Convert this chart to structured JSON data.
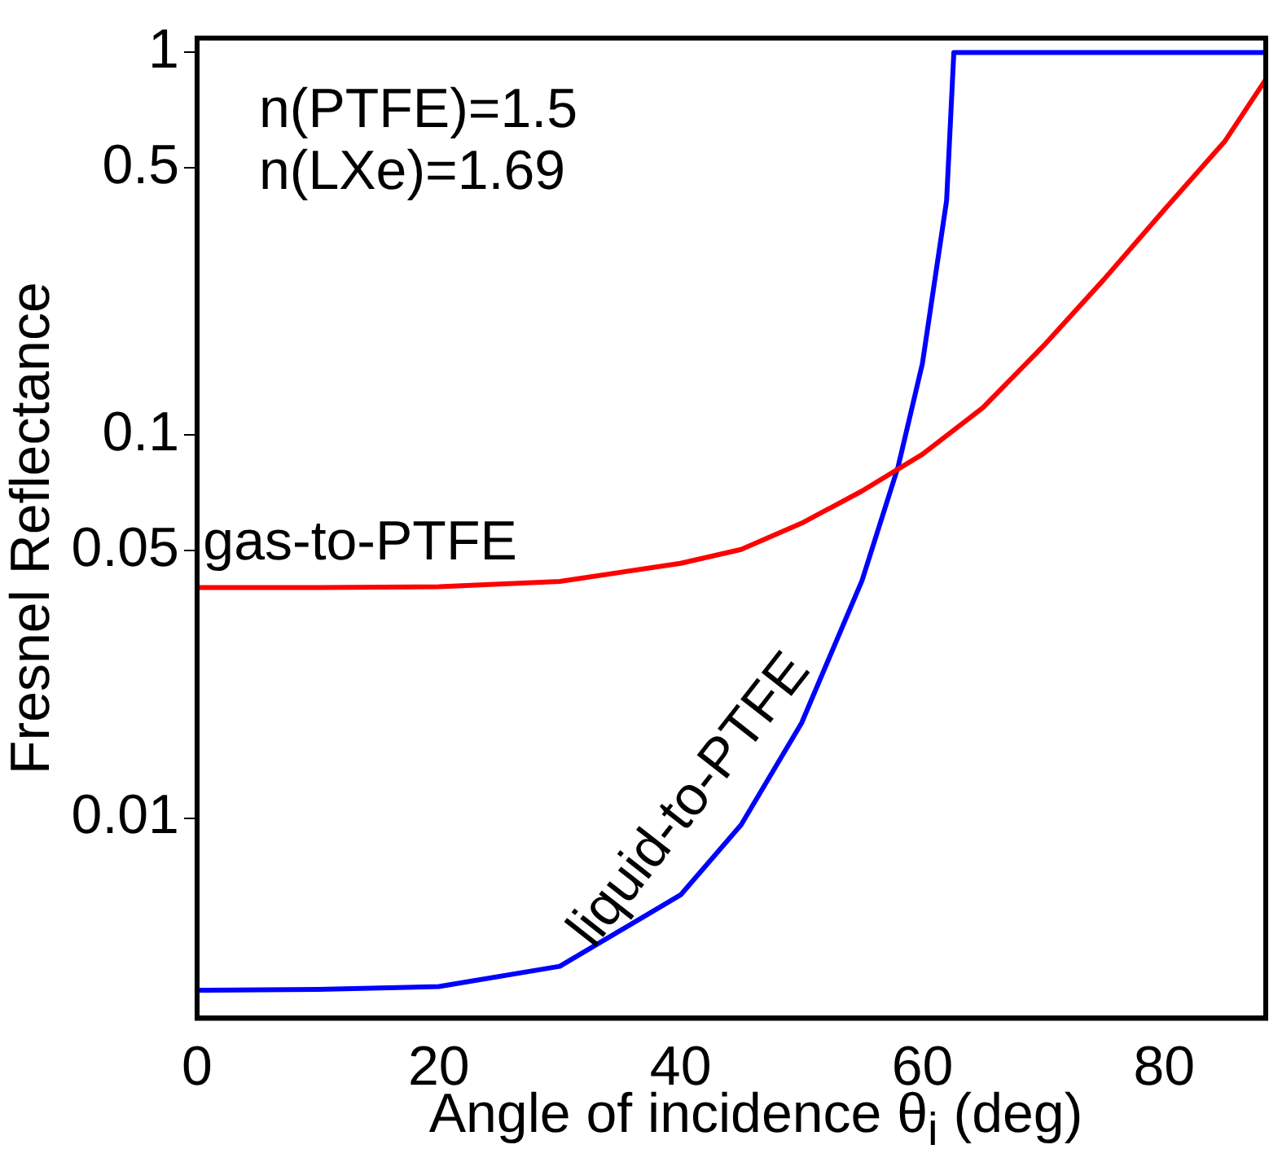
{
  "chart_data": {
    "type": "line",
    "xlabel": "Angle of incidence θ$_{i}$ (deg)",
    "ylabel": "Fresnel Reflectance",
    "log": "y",
    "grid": false,
    "legend": false,
    "marker": "none",
    "line_style": "solid",
    "xlim": [
      0,
      88.4
    ],
    "xticks": [
      0,
      20,
      40,
      60,
      80
    ],
    "ylim": [
      0.003,
      1.09
    ],
    "yticks": [
      0.01,
      0.05,
      0.1,
      0.5,
      1
    ],
    "annotations": [
      "n(PTFE)=1.5",
      "n(LXe)=1.69"
    ],
    "series": [
      {
        "name": "gas-to-PTFE",
        "color": "#ff0000",
        "x": [
          0,
          10,
          20,
          30,
          40,
          45,
          50,
          55,
          60,
          65,
          70,
          75,
          80,
          85,
          88.4
        ],
        "values": [
          0.04,
          0.04,
          0.0402,
          0.0415,
          0.0463,
          0.0503,
          0.0589,
          0.0715,
          0.0892,
          0.118,
          0.171,
          0.255,
          0.388,
          0.585,
          0.85
        ]
      },
      {
        "name": "liquid-to-PTFE",
        "color": "#0000ff",
        "x": [
          0,
          10,
          20,
          30,
          40,
          45,
          50,
          55,
          58,
          60,
          62,
          62.6,
          70,
          80,
          88.4
        ],
        "values": [
          0.00355,
          0.00357,
          0.00363,
          0.0041,
          0.0063,
          0.0096,
          0.0177,
          0.0417,
          0.083,
          0.154,
          0.41,
          1,
          1,
          1,
          1
        ]
      }
    ]
  }
}
